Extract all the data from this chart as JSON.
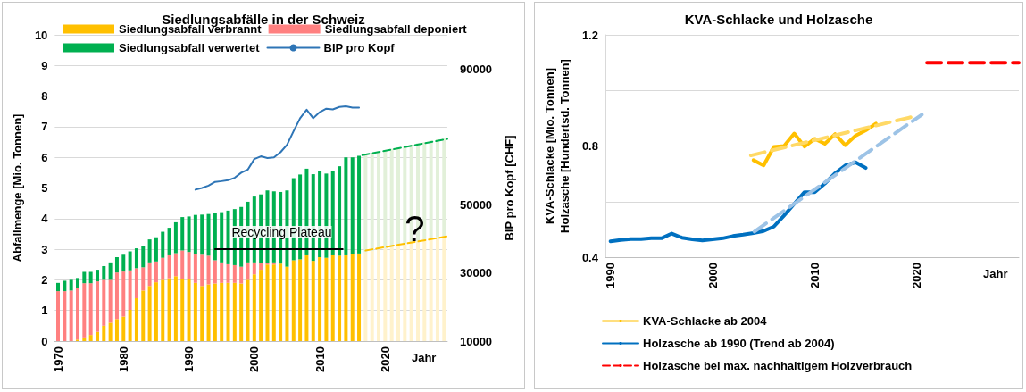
{
  "chart_data": [
    {
      "type": "bar",
      "title": "Siedlungsabfälle in der Schweiz",
      "xlabel": "Jahr",
      "ylabel": "Abfallmenge [Mio. Tonnen]",
      "y2label": "BIP pro Kopf [CHF]",
      "stacked": true,
      "grid": "y",
      "legend": "top",
      "marker": "none",
      "x": [
        1970,
        1971,
        1972,
        1973,
        1974,
        1975,
        1976,
        1977,
        1978,
        1979,
        1980,
        1981,
        1982,
        1983,
        1984,
        1985,
        1986,
        1987,
        1988,
        1989,
        1990,
        1991,
        1992,
        1993,
        1994,
        1995,
        1996,
        1997,
        1998,
        1999,
        2000,
        2001,
        2002,
        2003,
        2004,
        2005,
        2006,
        2007,
        2008,
        2009,
        2010,
        2011,
        2012,
        2013,
        2014,
        2015,
        2016,
        2017,
        2018,
        2019,
        2020,
        2021,
        2022,
        2023,
        2024,
        2025,
        2026,
        2027,
        2028,
        2029
      ],
      "xlim": [
        1969.5,
        2029.5
      ],
      "xticks": [
        1970,
        1980,
        1990,
        2000,
        2010,
        2020
      ],
      "ylim": [
        0,
        10
      ],
      "yticks": [
        0,
        1,
        2,
        3,
        4,
        5,
        6,
        7,
        8,
        9,
        10
      ],
      "y2lim": [
        10000,
        100000
      ],
      "y2ticks": [
        10000,
        30000,
        50000,
        90000
      ],
      "series": [
        {
          "name": "Siedlungsabfall verbrannt",
          "color": "#ffc000",
          "values": [
            0,
            0,
            0,
            0.05,
            0.12,
            0.2,
            0.3,
            0.5,
            0.6,
            0.72,
            0.8,
            1.02,
            1.4,
            1.65,
            1.8,
            1.92,
            2.0,
            2.05,
            2.12,
            2.04,
            2.02,
            1.9,
            1.8,
            1.85,
            1.88,
            1.9,
            1.9,
            1.9,
            1.88,
            2.0,
            2.18,
            2.33,
            2.5,
            2.5,
            2.53,
            2.43,
            2.64,
            2.67,
            2.8,
            2.62,
            2.74,
            2.72,
            2.8,
            2.79,
            2.8,
            2.84,
            2.86,
            null,
            null,
            null,
            null,
            null,
            null,
            null,
            null,
            null,
            null,
            null,
            null,
            null
          ]
        },
        {
          "name": "Siedlungsabfall deponiert",
          "color": "#ff8080",
          "values": [
            1.63,
            1.63,
            1.65,
            1.69,
            1.77,
            1.69,
            1.65,
            1.5,
            1.4,
            1.52,
            1.47,
            1.29,
            0.98,
            0.76,
            0.77,
            0.68,
            0.72,
            0.75,
            0.75,
            0.92,
            0.89,
            0.95,
            1.02,
            0.94,
            0.76,
            0.67,
            0.61,
            0.58,
            0.55,
            0.57,
            0.39,
            0.23,
            0.06,
            0.07,
            0,
            0,
            0,
            0,
            0,
            0,
            0,
            0,
            0,
            0,
            0,
            0,
            0,
            null,
            null,
            null,
            null,
            null,
            null,
            null,
            null,
            null,
            null,
            null,
            null,
            null
          ]
        },
        {
          "name": "Siedlungsabfall verwertet",
          "color": "#00b050",
          "values": [
            0.27,
            0.34,
            0.35,
            0.32,
            0.37,
            0.37,
            0.38,
            0.45,
            0.57,
            0.5,
            0.55,
            0.62,
            0.65,
            0.71,
            0.75,
            0.79,
            0.85,
            0.9,
            1.01,
            1.09,
            1.16,
            1.27,
            1.31,
            1.36,
            1.53,
            1.64,
            1.75,
            1.83,
            1.95,
            1.98,
            2.15,
            2.23,
            2.36,
            2.32,
            2.34,
            2.49,
            2.68,
            2.77,
            2.83,
            2.83,
            2.81,
            2.75,
            2.75,
            2.92,
            3.2,
            3.16,
            3.19,
            null,
            null,
            null,
            null,
            null,
            null,
            null,
            null,
            null,
            null,
            null,
            null,
            null
          ]
        },
        {
          "color": "#fff2cc",
          "values": [
            null,
            null,
            null,
            null,
            null,
            null,
            null,
            null,
            null,
            null,
            null,
            null,
            null,
            null,
            null,
            null,
            null,
            null,
            null,
            null,
            null,
            null,
            null,
            null,
            null,
            null,
            null,
            null,
            null,
            null,
            null,
            null,
            null,
            null,
            null,
            null,
            null,
            null,
            null,
            null,
            null,
            null,
            null,
            null,
            null,
            null,
            null,
            2.9,
            2.94,
            2.99,
            3.03,
            3.08,
            3.12,
            3.17,
            3.21,
            3.26,
            3.3,
            3.35,
            3.39,
            3.44
          ]
        },
        {
          "color": "#e2f0d9",
          "values": [
            null,
            null,
            null,
            null,
            null,
            null,
            null,
            null,
            null,
            null,
            null,
            null,
            null,
            null,
            null,
            null,
            null,
            null,
            null,
            null,
            null,
            null,
            null,
            null,
            null,
            null,
            null,
            null,
            null,
            null,
            null,
            null,
            null,
            null,
            null,
            null,
            null,
            null,
            null,
            null,
            null,
            null,
            null,
            null,
            null,
            null,
            null,
            3.2,
            3.2,
            3.2,
            3.2,
            3.2,
            3.2,
            3.2,
            3.2,
            3.2,
            3.2,
            3.2,
            3.2,
            3.2
          ]
        },
        {
          "name": "BIP pro Kopf",
          "type": "line",
          "axis": "y2",
          "color": "#2e75b6",
          "line_style": "solid",
          "x": [
            1991,
            1992,
            1993,
            1994,
            1995,
            1996,
            1997,
            1998,
            1999,
            2000,
            2001,
            2002,
            2003,
            2004,
            2005,
            2006,
            2007,
            2008,
            2009,
            2010,
            2011,
            2012,
            2013,
            2014,
            2015,
            2016
          ],
          "values": [
            54500,
            55000,
            55700,
            56800,
            57000,
            57300,
            58000,
            59500,
            60400,
            63500,
            64300,
            63800,
            64000,
            65500,
            67700,
            71700,
            75500,
            78000,
            75500,
            77300,
            78300,
            78100,
            78800,
            79000,
            78600,
            78600
          ]
        },
        {
          "type": "line",
          "color": "#00b050",
          "line_style": "dashed",
          "x": [
            2016.5,
            2029.5
          ],
          "values": [
            6.07,
            6.6
          ]
        },
        {
          "type": "line",
          "color": "#ffc000",
          "line_style": "dashed",
          "x": [
            2017,
            2029.5
          ],
          "values": [
            2.96,
            3.42
          ]
        },
        {
          "type": "line",
          "color": "#000000",
          "line_style": "solid",
          "x": [
            1994,
            2013.5
          ],
          "values": [
            3,
            3
          ]
        }
      ],
      "annotations": [
        "Recycling Plateau",
        "?"
      ]
    },
    {
      "type": "line",
      "title": "KVA-Schlacke und Holzasche",
      "xlabel": "Jahr",
      "ylabel": "KVA-Schlacke [Mio. Tonnen]\nHolzasche [Hundertsd. Tonnen]",
      "grid": "y",
      "legend": "bottom",
      "marker": "none",
      "xlim": [
        1989.5,
        2030
      ],
      "xticks": [
        1990,
        2000,
        2010,
        2020
      ],
      "ylim": [
        0.4,
        1.2
      ],
      "yticks": [
        0.4,
        {
          "value": 0.6,
          "label": null
        },
        0.8,
        {
          "value": 1.0,
          "label": null
        },
        1.2
      ],
      "series": [
        {
          "name": "KVA-Schlacke ab 2004",
          "color": "#ffc000",
          "line_style": "solid",
          "x": [
            2004,
            2005,
            2006,
            2007,
            2008,
            2009,
            2010,
            2011,
            2012,
            2013,
            2014,
            2015,
            2016
          ],
          "values": [
            0.749,
            0.73,
            0.797,
            0.8,
            0.845,
            0.798,
            0.826,
            0.808,
            0.843,
            0.803,
            0.837,
            0.856,
            0.881
          ]
        },
        {
          "name": "Holzasche ab 1990 (Trend ab 2004)",
          "color": "#0070c0",
          "line_style": "solid",
          "x": [
            1990,
            1991,
            1992,
            1993,
            1994,
            1995,
            1996,
            1997,
            1998,
            1999,
            2000,
            2001,
            2002,
            2003,
            2004,
            2005,
            2006,
            2007,
            2008,
            2009,
            2010,
            2011,
            2012,
            2013,
            2014,
            2015
          ],
          "values": [
            0.457,
            0.462,
            0.465,
            0.465,
            0.468,
            0.468,
            0.485,
            0.47,
            0.464,
            0.46,
            0.464,
            0.468,
            0.476,
            0.481,
            0.487,
            0.494,
            0.51,
            0.55,
            0.592,
            0.634,
            0.634,
            0.665,
            0.702,
            0.73,
            0.741,
            0.721
          ]
        },
        {
          "name": "Holzasche bei max. nachhaltigem Holzverbrauch",
          "color": "#ff0000",
          "line_style": "dashed",
          "x": [
            2021,
            2030
          ],
          "values": [
            1.1,
            1.1
          ]
        },
        {
          "color": "#ffd966",
          "line_style": "dashed",
          "x": [
            2003.75,
            2019.8
          ],
          "values": [
            0.766,
            0.907
          ]
        },
        {
          "color": "#9dc3e6",
          "line_style": "dashed",
          "x": [
            2004.1,
            2020.5
          ],
          "values": [
            0.492,
            0.913
          ]
        }
      ]
    }
  ]
}
